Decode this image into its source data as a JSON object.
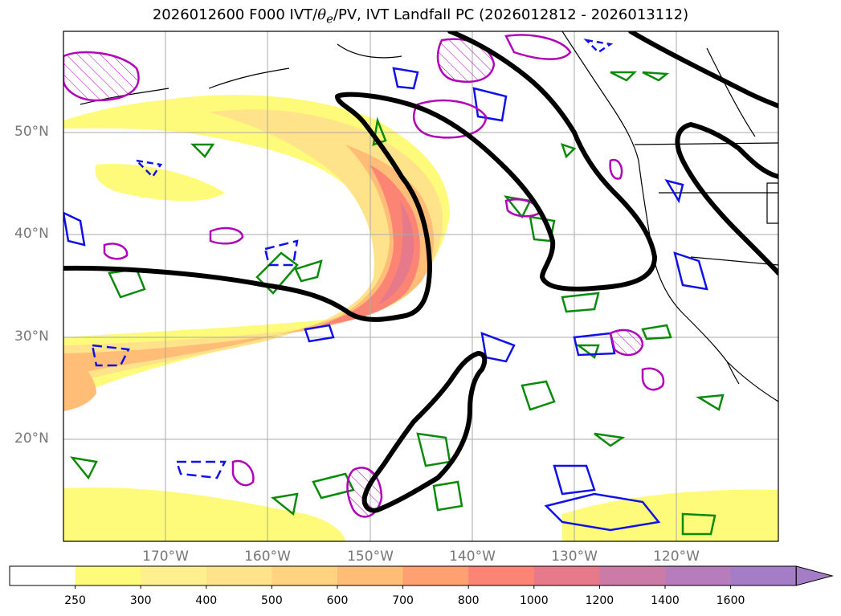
{
  "title": {
    "prefix": "2026012600 F000 IVT/",
    "theta": "θ",
    "theta_sub": "e",
    "suffix": "/PV, IVT Landfall PC (2026012812 - 2026013112)"
  },
  "latitude_labels": [
    "50°N",
    "40°N",
    "30°N",
    "20°N"
  ],
  "longitude_labels": [
    "170°W",
    "160°W",
    "150°W",
    "140°W",
    "130°W",
    "120°W"
  ],
  "colorbar": {
    "ticks": [
      "250",
      "300",
      "400",
      "500",
      "600",
      "700",
      "800",
      "1000",
      "1200",
      "1400",
      "1600"
    ],
    "colors": [
      "#ffffff",
      "#fffb7a",
      "#fff08f",
      "#ffe38a",
      "#ffd37f",
      "#ffbd77",
      "#ffa071",
      "#fb8474",
      "#e77a8a",
      "#cc7ba6",
      "#b77cbc",
      "#a57cc6"
    ],
    "extend": "max"
  },
  "legend_colors": {
    "ivt_contour": "#000000",
    "theta_e": "#0a8a0a",
    "pv_positive": "#1010e8",
    "pv_negative": "#b000b8"
  }
}
